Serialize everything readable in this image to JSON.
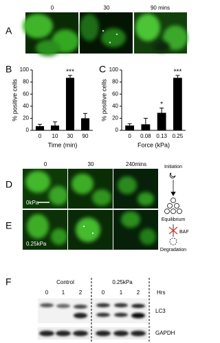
{
  "chart_data": [
    {
      "type": "bar",
      "panel": "B",
      "ylabel": "% positive cells",
      "xlabel": "Time (min)",
      "categories": [
        "0",
        "10",
        "30",
        "90"
      ],
      "values": [
        7,
        8,
        87,
        20
      ],
      "errors": [
        3,
        6,
        4,
        8
      ],
      "bar_annotations": [
        null,
        null,
        "***",
        null
      ],
      "color": "#000000",
      "ylim": [
        0,
        100
      ],
      "yticks": [
        0,
        20,
        40,
        60,
        80,
        100
      ]
    },
    {
      "type": "bar",
      "panel": "C",
      "ylabel": "% positive cells",
      "xlabel": "Force (kPa)",
      "categories": [
        "0",
        "0.08",
        "0.13",
        "0.25"
      ],
      "values": [
        8,
        10,
        29,
        87
      ],
      "errors": [
        3,
        10,
        8,
        4
      ],
      "bar_annotations": [
        null,
        null,
        "*",
        "***"
      ],
      "color": "#000000",
      "ylim": [
        0,
        100
      ],
      "yticks": [
        0,
        20,
        40,
        60,
        80,
        100
      ]
    }
  ],
  "panel_a": {
    "letter": "A",
    "labels": [
      "0",
      "30",
      "90 mins"
    ]
  },
  "panel_d": {
    "letter": "D",
    "labels": [
      "0",
      "30",
      "240mins"
    ],
    "condition": "0kPa"
  },
  "panel_e": {
    "letter": "E",
    "condition": "0.25kPa"
  },
  "diagram": {
    "initiation": "Initiation",
    "equilibrium": "Equilibrium",
    "baf": "BAF",
    "degradation": "Degradation"
  },
  "panel_f": {
    "letter": "F",
    "groups": [
      "Control",
      "0.25kPa"
    ],
    "lanes": [
      "0",
      "1",
      "2",
      "0",
      "1",
      "2"
    ],
    "unit": "Hrs",
    "bands": [
      "LC3",
      "GAPDH"
    ]
  }
}
